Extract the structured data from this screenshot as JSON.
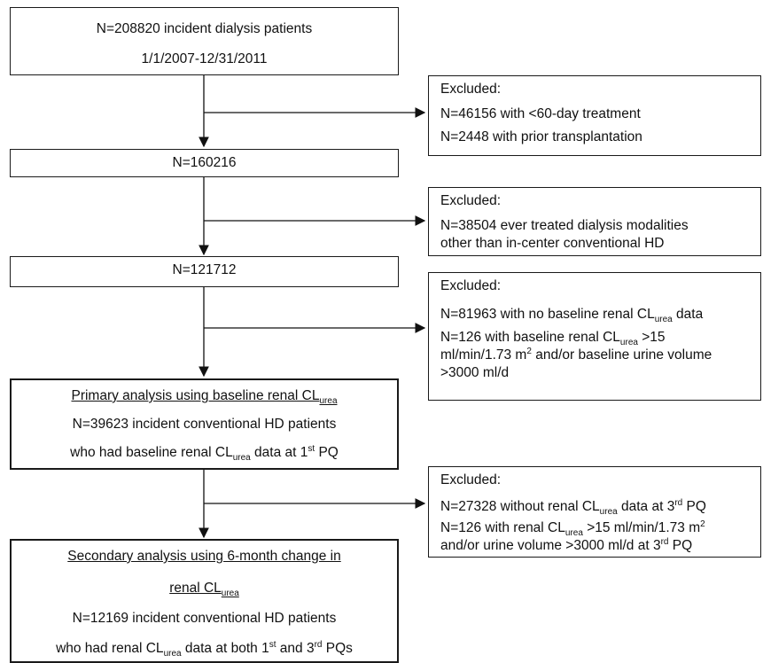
{
  "main_boxes": [
    {
      "id": "m1",
      "lines": [
        [
          "N=208820 incident dialysis patients"
        ],
        [
          "1/1/2007-12/31/2011"
        ]
      ]
    },
    {
      "id": "m2",
      "lines": [
        [
          "N=160216"
        ]
      ]
    },
    {
      "id": "m3",
      "lines": [
        [
          "N=121712"
        ]
      ]
    },
    {
      "id": "m4",
      "lines": [
        [
          {
            "t": "Primary analysis using baseline renal CL"
          },
          {
            "sub": "urea"
          }
        ],
        [
          "N=39623 incident conventional HD patients"
        ],
        [
          "who had baseline renal CL",
          {
            "sub": "urea"
          },
          " data at 1",
          {
            "sup": "st"
          },
          " PQ"
        ]
      ]
    },
    {
      "id": "m5",
      "lines": [
        [
          {
            "t": "Secondary analysis using 6-month change in"
          }
        ],
        [
          {
            "t": "renal CL"
          },
          {
            "sub": "urea"
          }
        ],
        [
          "N=12169 incident conventional HD patients"
        ],
        [
          "who had renal CL",
          {
            "sub": "urea"
          },
          " data at both 1",
          {
            "sup": "st"
          },
          " and 3",
          {
            "sup": "rd"
          },
          " PQs"
        ]
      ]
    }
  ],
  "exclusion_boxes": [
    {
      "id": "e1",
      "lines": [
        [
          "Excluded:"
        ],
        [
          "N=46156 with <60-day treatment"
        ],
        [
          "N=2448 with prior transplantation"
        ]
      ]
    },
    {
      "id": "e2",
      "lines": [
        [
          "Excluded:"
        ],
        [
          "N=38504 ever treated dialysis modalities"
        ],
        [
          "other than in-center conventional HD"
        ]
      ]
    },
    {
      "id": "e3",
      "lines": [
        [
          "Excluded:"
        ],
        [
          "N=81963 with no baseline renal CL",
          {
            "sub": "urea"
          },
          " data"
        ],
        [
          "N=126 with baseline renal CL",
          {
            "sub": "urea"
          },
          " >15"
        ],
        [
          "ml/min/1.73 m",
          {
            "sup": "2"
          },
          " and/or baseline urine volume"
        ],
        [
          ">3000 ml/d"
        ]
      ]
    },
    {
      "id": "e4",
      "lines": [
        [
          "Excluded:"
        ],
        [
          "N=27328 without renal CL",
          {
            "sub": "urea"
          },
          " data at 3",
          {
            "sup": "rd"
          },
          " PQ"
        ],
        [
          "N=126 with renal CL",
          {
            "sub": "urea"
          },
          " >15 ml/min/1.73 m",
          {
            "sup": "2"
          }
        ],
        [
          "and/or urine volume >3000 ml/d at 3",
          {
            "sup": "rd"
          },
          " PQ"
        ]
      ]
    }
  ]
}
